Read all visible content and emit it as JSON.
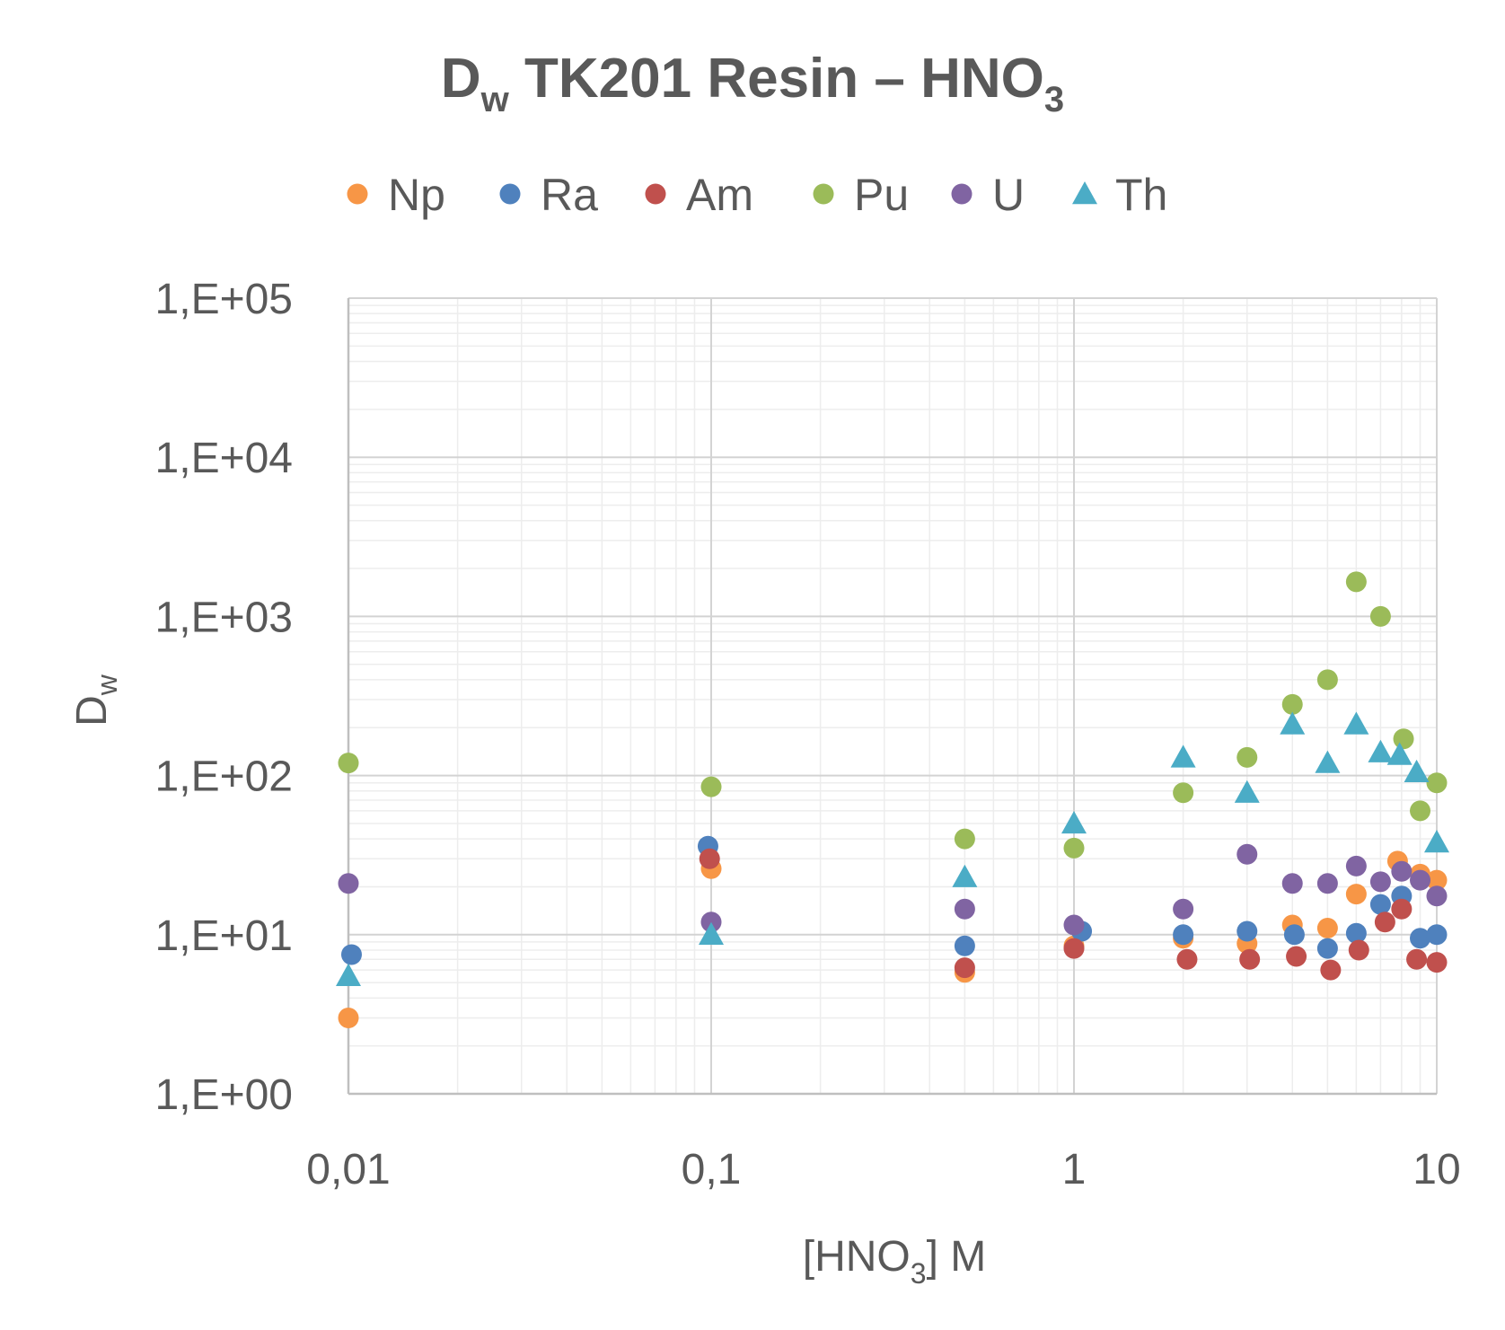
{
  "chart_data": {
    "type": "scatter",
    "title": {
      "main": "D",
      "main_sub": "w",
      "rest": " TK201 Resin – HNO",
      "rest_sub": "3"
    },
    "xlabel": {
      "pre": "[HNO",
      "sub": "3",
      "post": "] M"
    },
    "ylabel": {
      "main": "D",
      "sub": "w"
    },
    "x_scale": "log",
    "y_scale": "log",
    "xlim": [
      0.01,
      10
    ],
    "ylim": [
      1,
      100000
    ],
    "x_ticks": [
      0.01,
      0.1,
      1,
      10
    ],
    "x_tick_labels": [
      "0,01",
      "0,1",
      "1",
      "10"
    ],
    "y_ticks": [
      1,
      10,
      100,
      1000,
      10000,
      100000
    ],
    "y_tick_labels": [
      "1,E+00",
      "1,E+01",
      "1,E+02",
      "1,E+03",
      "1,E+04",
      "1,E+05"
    ],
    "grid": true,
    "legend_position": "top",
    "series": [
      {
        "name": "Np",
        "marker": "circle",
        "color": "#F79646",
        "points": [
          [
            0.01,
            3.0
          ],
          [
            0.1,
            26
          ],
          [
            0.5,
            5.8
          ],
          [
            1,
            8.5
          ],
          [
            2,
            9.5
          ],
          [
            3,
            8.8
          ],
          [
            4,
            11.5
          ],
          [
            5,
            11
          ],
          [
            6,
            18
          ],
          [
            7.8,
            29
          ],
          [
            9,
            24
          ],
          [
            10,
            22
          ]
        ]
      },
      {
        "name": "Ra",
        "marker": "circle",
        "color": "#4F81BD",
        "points": [
          [
            0.0102,
            7.5
          ],
          [
            0.098,
            36
          ],
          [
            0.5,
            8.5
          ],
          [
            1.05,
            10.5
          ],
          [
            2,
            10
          ],
          [
            3,
            10.5
          ],
          [
            4.05,
            10
          ],
          [
            5,
            8.2
          ],
          [
            6,
            10.2
          ],
          [
            7,
            15.5
          ],
          [
            8,
            17.5
          ],
          [
            9,
            9.5
          ],
          [
            10,
            10
          ]
        ]
      },
      {
        "name": "Am",
        "marker": "circle",
        "color": "#C0504D",
        "points": [
          [
            0.099,
            30
          ],
          [
            0.5,
            6.2
          ],
          [
            1,
            8.2
          ],
          [
            2.05,
            7
          ],
          [
            3.05,
            7
          ],
          [
            4.1,
            7.3
          ],
          [
            5.1,
            6
          ],
          [
            6.1,
            8
          ],
          [
            7.2,
            12
          ],
          [
            8,
            14.5
          ],
          [
            8.8,
            7
          ],
          [
            10,
            6.7
          ]
        ]
      },
      {
        "name": "Pu",
        "marker": "circle",
        "color": "#9BBB59",
        "points": [
          [
            0.01,
            120
          ],
          [
            0.1,
            85
          ],
          [
            0.5,
            40
          ],
          [
            1,
            35
          ],
          [
            2,
            78
          ],
          [
            3,
            130
          ],
          [
            4,
            280
          ],
          [
            5,
            400
          ],
          [
            6,
            1650
          ],
          [
            7,
            1000
          ],
          [
            8.1,
            170
          ],
          [
            9,
            60
          ],
          [
            10,
            90
          ]
        ]
      },
      {
        "name": "U",
        "marker": "circle",
        "color": "#8064A2",
        "points": [
          [
            0.01,
            21
          ],
          [
            0.1,
            12
          ],
          [
            0.5,
            14.5
          ],
          [
            1,
            11.5
          ],
          [
            2,
            14.5
          ],
          [
            3,
            32
          ],
          [
            4,
            21
          ],
          [
            5,
            21
          ],
          [
            6,
            27
          ],
          [
            7,
            21.5
          ],
          [
            8,
            25
          ],
          [
            9,
            22
          ],
          [
            10,
            17.5
          ]
        ]
      },
      {
        "name": "Th",
        "marker": "triangle",
        "color": "#4BACC6",
        "points": [
          [
            0.01,
            5.5
          ],
          [
            0.1,
            10
          ],
          [
            0.5,
            23
          ],
          [
            1,
            50
          ],
          [
            2,
            130
          ],
          [
            3,
            78
          ],
          [
            4,
            210
          ],
          [
            5,
            120
          ],
          [
            6,
            210
          ],
          [
            7,
            140
          ],
          [
            7.9,
            135
          ],
          [
            8.8,
            105
          ],
          [
            10,
            38
          ]
        ]
      }
    ]
  }
}
